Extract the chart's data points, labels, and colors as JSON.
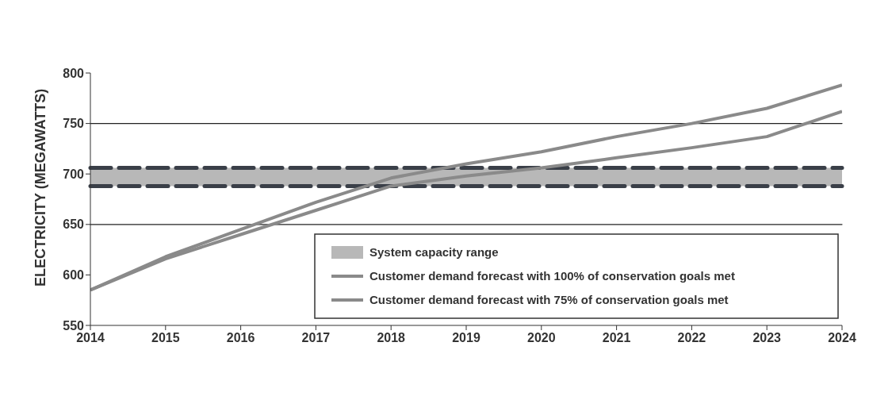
{
  "chart_data": {
    "type": "line",
    "ylabel": "ELECTRICITY (MEGAWATTS)",
    "x": [
      2014,
      2015,
      2016,
      2017,
      2018,
      2019,
      2020,
      2021,
      2022,
      2023,
      2024
    ],
    "xlim": [
      2014,
      2024
    ],
    "xticks": [
      2014,
      2015,
      2016,
      2017,
      2018,
      2019,
      2020,
      2021,
      2022,
      2023,
      2024
    ],
    "ylim": [
      550,
      800
    ],
    "yticks": [
      550,
      600,
      650,
      700,
      750,
      800
    ],
    "series": [
      {
        "name": "Customer demand forecast with 100% of conservation goals met",
        "color": "#8a8a8a",
        "values": [
          585,
          616,
          640,
          664,
          688,
          698,
          706,
          716,
          726,
          737,
          762
        ]
      },
      {
        "name": "Customer demand forecast with 75% of conservation goals met",
        "color": "#8a8a8a",
        "values": [
          585,
          618,
          645,
          672,
          696,
          710,
          722,
          737,
          750,
          765,
          788
        ]
      }
    ],
    "bands": [
      {
        "axis": "y",
        "from": 688,
        "to": 706,
        "label": "System capacity range",
        "color": "#b8b8b8"
      }
    ],
    "ref_lines": [
      {
        "axis": "y",
        "value": 650,
        "color": "#222222"
      },
      {
        "axis": "y",
        "value": 688,
        "color": "#3a3f48",
        "line_style": "dashed"
      },
      {
        "axis": "y",
        "value": 706,
        "color": "#3a3f48",
        "line_style": "dashed"
      },
      {
        "axis": "y",
        "value": 750,
        "color": "#222222"
      }
    ],
    "legend": "bottom right",
    "marker": "none",
    "line_style": "solid"
  }
}
